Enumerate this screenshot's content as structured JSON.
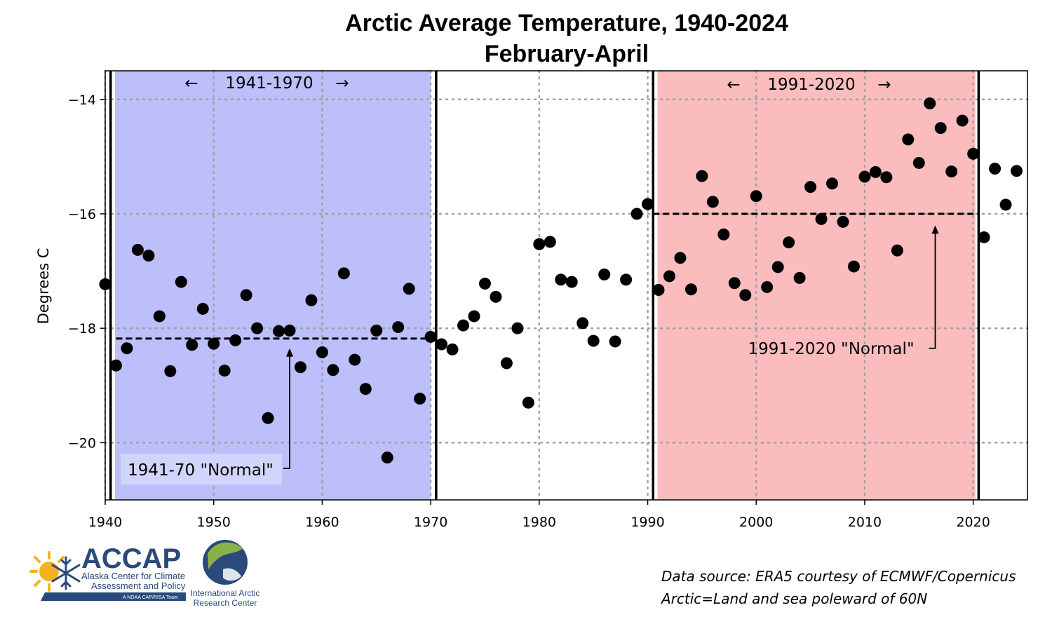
{
  "chart_data": {
    "type": "scatter",
    "title": "Arctic Average Temperature, 1940-2024",
    "subtitle": "February-April",
    "xlabel": "",
    "ylabel": "Degrees C",
    "xlim": [
      1940,
      2025
    ],
    "ylim": [
      -21,
      -13.5
    ],
    "x_ticks": [
      1940,
      1950,
      1960,
      1970,
      1980,
      1990,
      2000,
      2010,
      2020
    ],
    "y_ticks": [
      {
        "value": -14,
        "label": "−14"
      },
      {
        "value": -16,
        "label": "−16"
      },
      {
        "value": -18,
        "label": "−18"
      },
      {
        "value": -20,
        "label": "−20"
      }
    ],
    "grid": true,
    "x": [
      1940,
      1941,
      1942,
      1943,
      1944,
      1945,
      1946,
      1947,
      1948,
      1949,
      1950,
      1951,
      1952,
      1953,
      1954,
      1955,
      1956,
      1957,
      1958,
      1959,
      1960,
      1961,
      1962,
      1963,
      1964,
      1965,
      1966,
      1967,
      1968,
      1969,
      1970,
      1971,
      1972,
      1973,
      1974,
      1975,
      1976,
      1977,
      1978,
      1979,
      1980,
      1981,
      1982,
      1983,
      1984,
      1985,
      1986,
      1987,
      1988,
      1989,
      1990,
      1991,
      1992,
      1993,
      1994,
      1995,
      1996,
      1997,
      1998,
      1999,
      2000,
      2001,
      2002,
      2003,
      2004,
      2005,
      2006,
      2007,
      2008,
      2009,
      2010,
      2011,
      2012,
      2013,
      2014,
      2015,
      2016,
      2017,
      2018,
      2019,
      2020,
      2021,
      2022,
      2023,
      2024
    ],
    "values": [
      -17.23,
      -18.65,
      -18.35,
      -16.63,
      -16.73,
      -17.79,
      -18.75,
      -17.19,
      -18.29,
      -17.66,
      -18.27,
      -18.74,
      -18.21,
      -17.42,
      -18.0,
      -19.57,
      -18.05,
      -18.04,
      -18.68,
      -17.51,
      -18.42,
      -18.73,
      -17.04,
      -18.55,
      -19.06,
      -18.04,
      -20.26,
      -17.98,
      -17.31,
      -19.23,
      -18.15,
      -18.28,
      -18.37,
      -17.95,
      -17.79,
      -17.22,
      -17.45,
      -18.61,
      -18.0,
      -19.3,
      -16.53,
      -16.49,
      -17.15,
      -17.19,
      -17.91,
      -18.22,
      -17.06,
      -18.23,
      -17.15,
      -16.0,
      -15.83,
      -17.33,
      -17.09,
      -16.77,
      -17.32,
      -15.34,
      -15.79,
      -16.36,
      -17.21,
      -17.42,
      -15.69,
      -17.28,
      -16.93,
      -16.5,
      -17.12,
      -15.53,
      -16.09,
      -15.47,
      -16.14,
      -16.92,
      -15.35,
      -15.27,
      -15.36,
      -16.64,
      -14.7,
      -15.11,
      -14.07,
      -14.5,
      -15.26,
      -14.37,
      -14.95,
      -16.41,
      -15.21,
      -15.84,
      -15.25
    ],
    "periods": [
      {
        "label": "1941-1970",
        "start": 1940.9,
        "end": 1970.0,
        "color": "#bcbff9"
      },
      {
        "label": "1991-2020",
        "start": 1990.9,
        "end": 2020.2,
        "color": "#fbbcbd"
      }
    ],
    "period_boundaries": [
      1940.5,
      1970.5,
      1990.5,
      2020.5
    ],
    "normals": [
      {
        "label": "1941-70 \"Normal\"",
        "value": -18.18,
        "start": 1941,
        "end": 1970.5,
        "arrow_year": 1957,
        "arrow_from": -20.45,
        "arrow_to": -18.35
      },
      {
        "label": "1991-2020 \"Normal\"",
        "value": -16.0,
        "start": 1990.5,
        "end": 2020.5,
        "arrow_year": 2016.5,
        "arrow_from": -18.35,
        "arrow_to": -16.2
      }
    ],
    "arrows": {
      "left": "←",
      "right": "→"
    },
    "data_source_lines": [
      "Data source: ERA5 courtesy of ECMWF/Copernicus",
      "Arctic=Land and sea poleward of 60N"
    ]
  },
  "logos": {
    "accap_name": "ACCAP",
    "accap_line1": "Alaska Center for Climate",
    "accap_line2": "Assessment and Policy",
    "accap_bar": "A NOAA CAP/RISA Team",
    "iarc_line1": "International Arctic",
    "iarc_line2": "Research Center"
  },
  "colors": {
    "blue_band": "#bcbff9",
    "red_band": "#fbbcbd",
    "point": "#000000",
    "grid": "#a0a0a0",
    "logo_blue": "#2a4a7c",
    "logo_gold": "#f2b31c"
  }
}
